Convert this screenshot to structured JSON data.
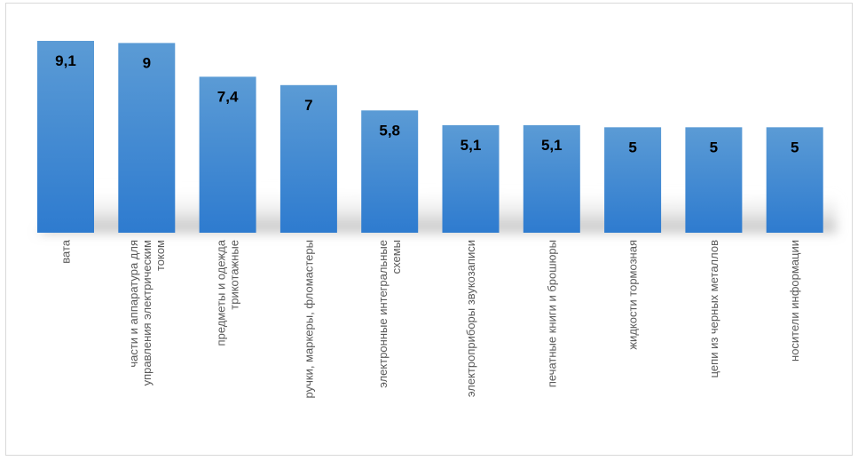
{
  "chart_data": {
    "type": "bar",
    "title": "",
    "xlabel": "",
    "ylabel": "",
    "ylim": [
      0,
      9.1
    ],
    "grid": false,
    "legend": "none",
    "categories": [
      [
        "вата"
      ],
      [
        "части и аппаратура для",
        "управления электрическим",
        "током"
      ],
      [
        "предметы и одежда",
        "трикотажные"
      ],
      [
        "ручки, маркеры, фломастеры"
      ],
      [
        "электронные интегральные",
        "схемы"
      ],
      [
        "электроприборы звукозаписи"
      ],
      [
        "печатные книги и брошюры"
      ],
      [
        "жидкости тормозная"
      ],
      [
        "цепи из черных металлов"
      ],
      [
        "носители информации"
      ]
    ],
    "value_labels": [
      "9,1",
      "9",
      "7,4",
      "7",
      "5,8",
      "5,1",
      "5,1",
      "5",
      "5",
      "5"
    ],
    "values": [
      9.1,
      9,
      7.4,
      7,
      5.8,
      5.1,
      5.1,
      5,
      5,
      5
    ],
    "colors": {
      "bar_top": "#5b9bd5",
      "bar_bottom": "#2e7bcf",
      "shadow": "#bfbfbf",
      "label_text": "#000000",
      "category_text": "#595959"
    }
  }
}
